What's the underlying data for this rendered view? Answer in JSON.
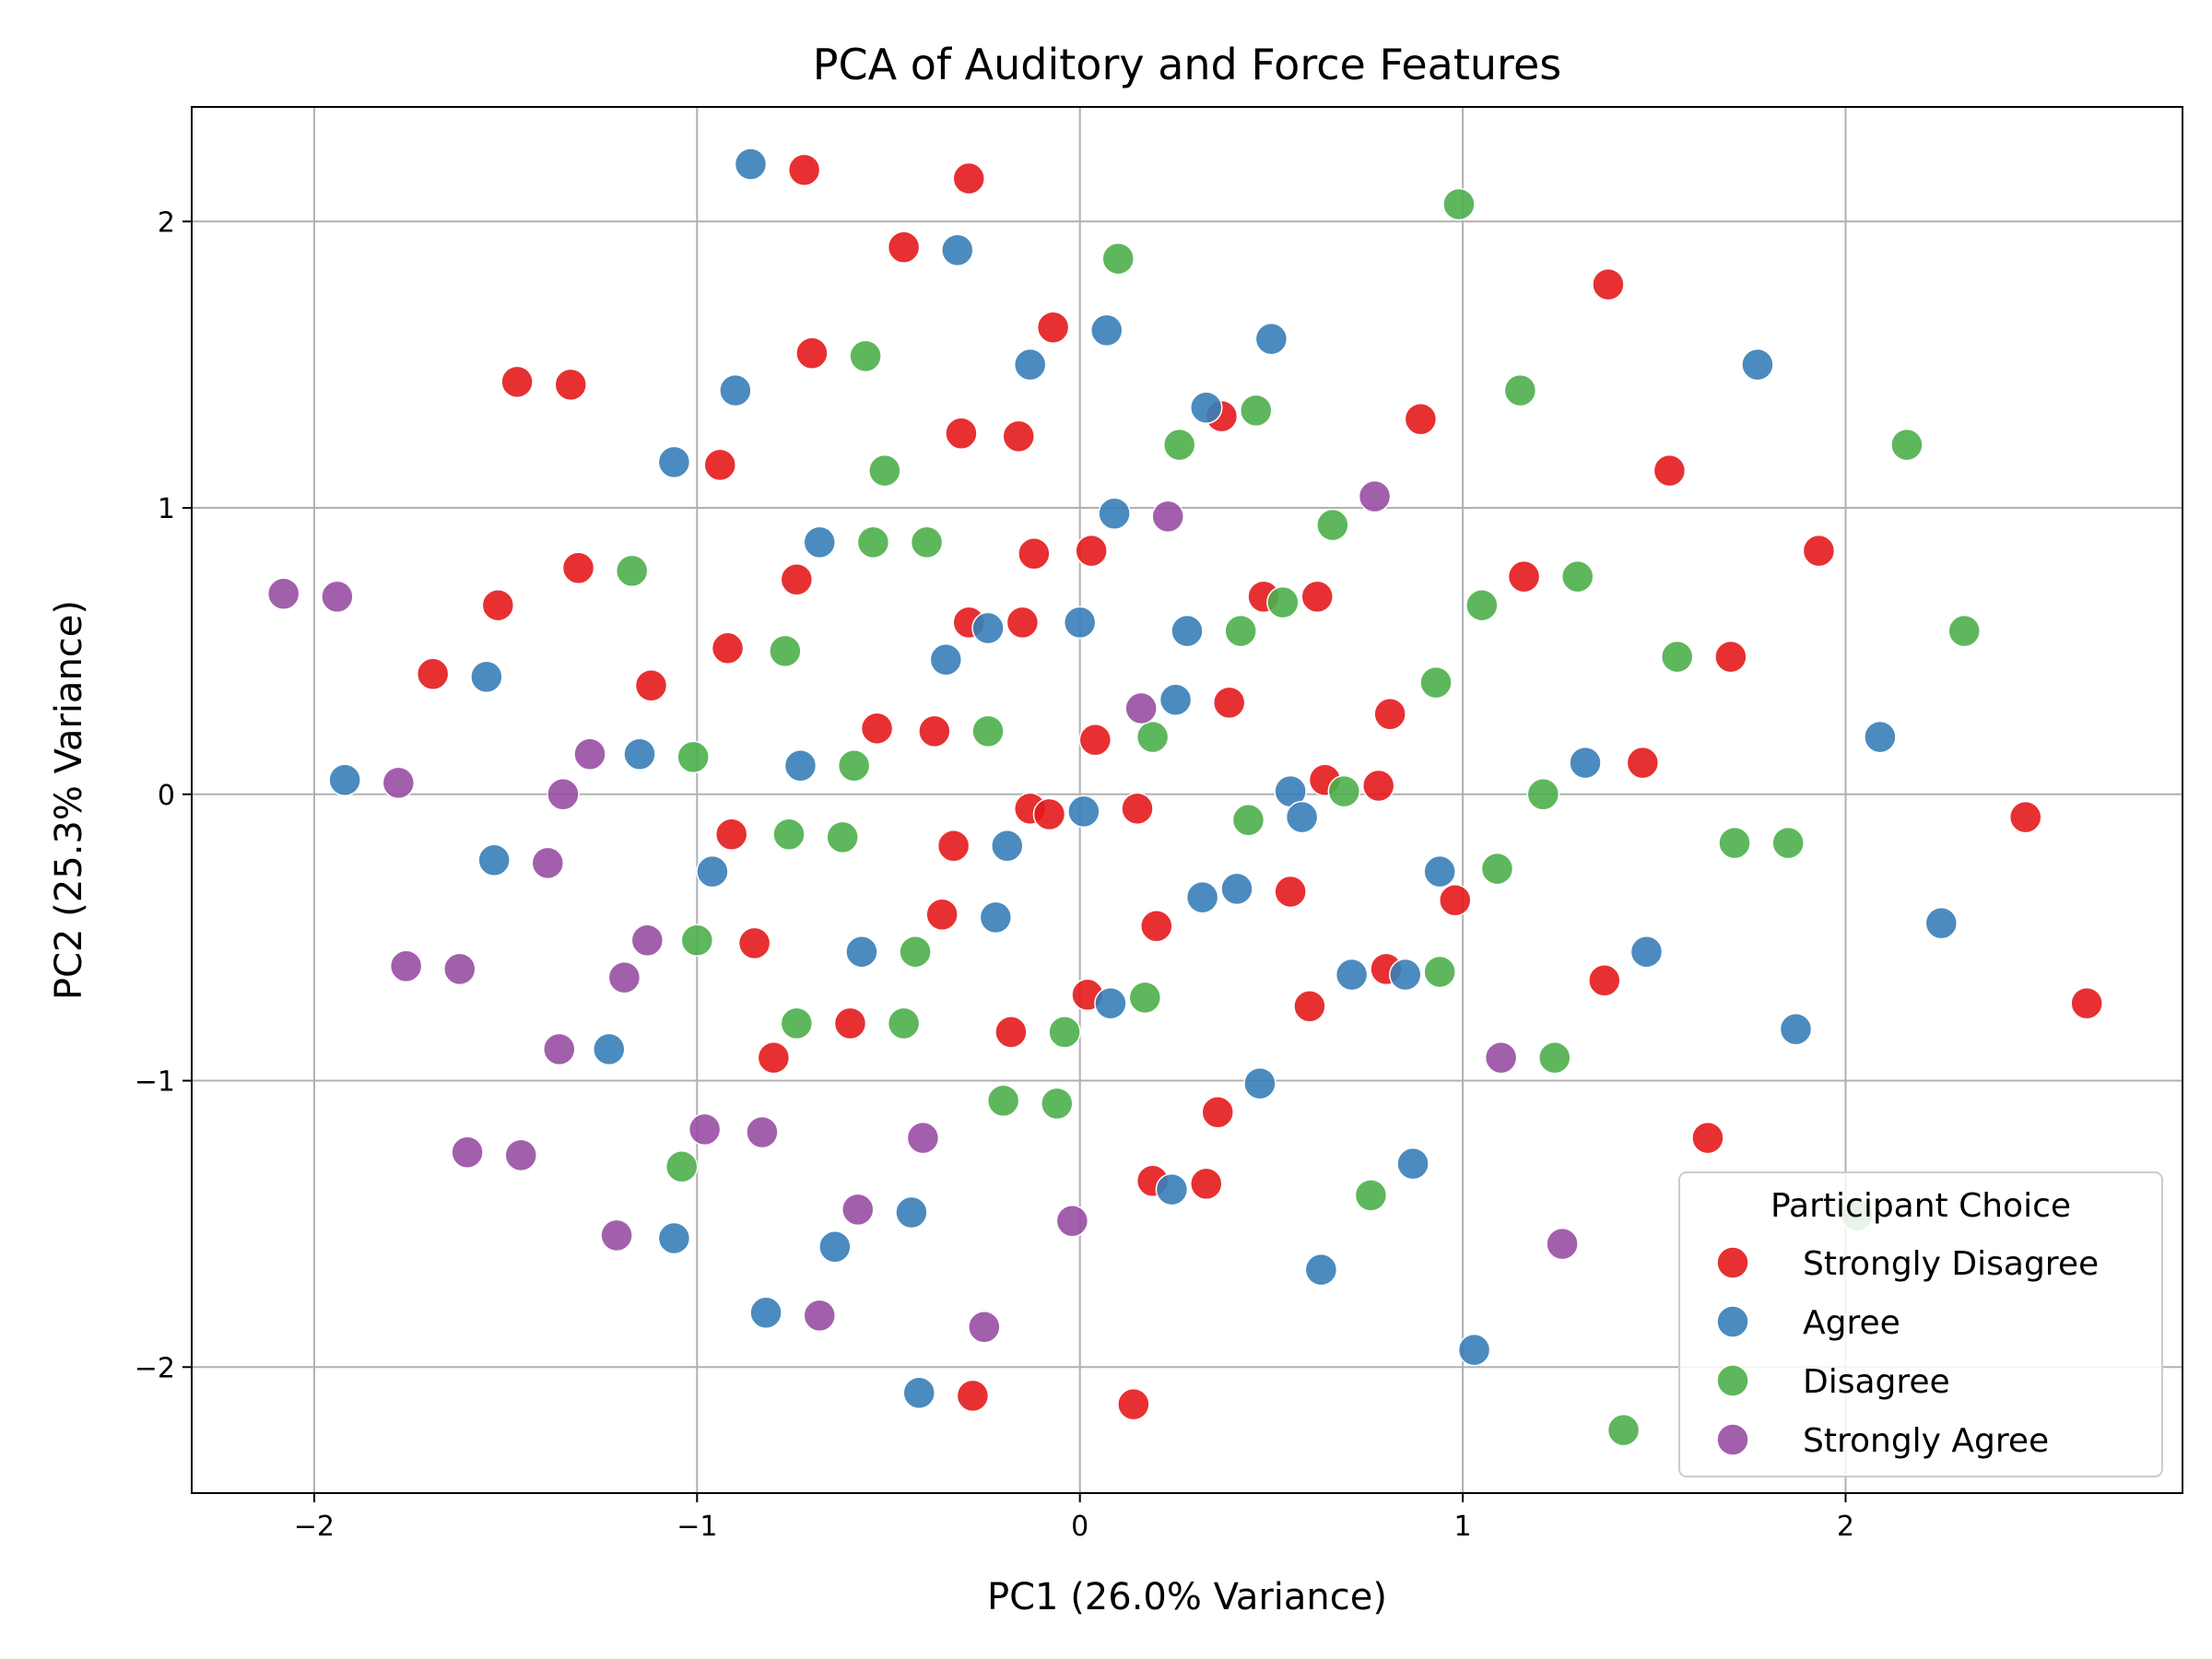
{
  "chart_data": {
    "type": "scatter",
    "title": "PCA of Auditory and Force Features",
    "xlabel": "PC1 (26.0% Variance)",
    "ylabel": "PC2 (25.3% Variance)",
    "xlim": [
      -2.32,
      2.88
    ],
    "ylim": [
      -2.44,
      2.4
    ],
    "xticks": [
      -2,
      -1,
      0,
      1,
      2
    ],
    "yticks": [
      -2,
      -1,
      0,
      1,
      2
    ],
    "xtick_labels": [
      "−2",
      "−1",
      "0",
      "1",
      "2"
    ],
    "ytick_labels": [
      "−2",
      "−1",
      "0",
      "1",
      "2"
    ],
    "grid": true,
    "legend": {
      "title": "Participant Choice",
      "position": "bottom-right"
    },
    "series": [
      {
        "name": "Strongly Disagree",
        "color": "#e41a1c",
        "points": [
          [
            -0.72,
            2.18
          ],
          [
            -0.29,
            2.15
          ],
          [
            -0.46,
            1.91
          ],
          [
            1.38,
            1.78
          ],
          [
            -0.7,
            1.54
          ],
          [
            -0.07,
            1.63
          ],
          [
            -1.47,
            1.44
          ],
          [
            -1.33,
            1.43
          ],
          [
            -0.31,
            1.26
          ],
          [
            -0.16,
            1.25
          ],
          [
            0.37,
            1.32
          ],
          [
            0.89,
            1.31
          ],
          [
            -0.94,
            1.15
          ],
          [
            1.54,
            1.13
          ],
          [
            1.93,
            0.85
          ],
          [
            -0.12,
            0.84
          ],
          [
            0.03,
            0.85
          ],
          [
            -1.31,
            0.79
          ],
          [
            -0.74,
            0.75
          ],
          [
            1.16,
            0.76
          ],
          [
            -1.52,
            0.66
          ],
          [
            0.48,
            0.69
          ],
          [
            0.62,
            0.69
          ],
          [
            -0.29,
            0.6
          ],
          [
            -0.15,
            0.6
          ],
          [
            -1.69,
            0.42
          ],
          [
            -0.92,
            0.51
          ],
          [
            1.7,
            0.48
          ],
          [
            -1.12,
            0.38
          ],
          [
            0.39,
            0.32
          ],
          [
            0.81,
            0.28
          ],
          [
            -0.53,
            0.23
          ],
          [
            -0.38,
            0.22
          ],
          [
            0.04,
            0.19
          ],
          [
            1.47,
            0.11
          ],
          [
            0.64,
            0.05
          ],
          [
            0.78,
            0.03
          ],
          [
            -0.13,
            -0.05
          ],
          [
            -0.08,
            -0.07
          ],
          [
            0.15,
            -0.05
          ],
          [
            2.47,
            -0.08
          ],
          [
            -0.91,
            -0.14
          ],
          [
            -0.33,
            -0.18
          ],
          [
            0.55,
            -0.34
          ],
          [
            0.98,
            -0.37
          ],
          [
            -0.36,
            -0.42
          ],
          [
            -0.85,
            -0.52
          ],
          [
            0.2,
            -0.46
          ],
          [
            1.37,
            -0.65
          ],
          [
            0.8,
            -0.61
          ],
          [
            0.02,
            -0.7
          ],
          [
            0.6,
            -0.74
          ],
          [
            2.63,
            -0.73
          ],
          [
            -0.6,
            -0.8
          ],
          [
            -0.18,
            -0.83
          ],
          [
            -0.8,
            -0.92
          ],
          [
            0.36,
            -1.11
          ],
          [
            1.64,
            -1.2
          ],
          [
            0.19,
            -1.35
          ],
          [
            0.33,
            -1.36
          ],
          [
            -0.28,
            -2.1
          ],
          [
            0.14,
            -2.13
          ]
        ]
      },
      {
        "name": "Agree",
        "color": "#377eb8",
        "points": [
          [
            -0.86,
            2.2
          ],
          [
            -0.32,
            1.9
          ],
          [
            0.07,
            1.62
          ],
          [
            0.5,
            1.59
          ],
          [
            1.77,
            1.5
          ],
          [
            -0.13,
            1.5
          ],
          [
            -0.9,
            1.41
          ],
          [
            0.33,
            1.35
          ],
          [
            -1.06,
            1.16
          ],
          [
            0.09,
            0.98
          ],
          [
            -0.68,
            0.88
          ],
          [
            0.0,
            0.6
          ],
          [
            -0.24,
            0.58
          ],
          [
            0.28,
            0.57
          ],
          [
            -0.35,
            0.47
          ],
          [
            -1.55,
            0.41
          ],
          [
            0.25,
            0.33
          ],
          [
            2.09,
            0.2
          ],
          [
            -1.15,
            0.14
          ],
          [
            1.32,
            0.11
          ],
          [
            -0.73,
            0.1
          ],
          [
            -1.92,
            0.05
          ],
          [
            0.55,
            0.01
          ],
          [
            0.58,
            -0.08
          ],
          [
            0.01,
            -0.06
          ],
          [
            -0.19,
            -0.18
          ],
          [
            -1.53,
            -0.23
          ],
          [
            -0.96,
            -0.27
          ],
          [
            0.94,
            -0.27
          ],
          [
            0.41,
            -0.33
          ],
          [
            0.32,
            -0.36
          ],
          [
            -0.22,
            -0.43
          ],
          [
            2.25,
            -0.45
          ],
          [
            -0.57,
            -0.55
          ],
          [
            1.48,
            -0.55
          ],
          [
            0.71,
            -0.63
          ],
          [
            0.85,
            -0.63
          ],
          [
            0.08,
            -0.73
          ],
          [
            1.87,
            -0.82
          ],
          [
            -1.23,
            -0.89
          ],
          [
            0.47,
            -1.01
          ],
          [
            0.87,
            -1.29
          ],
          [
            0.24,
            -1.38
          ],
          [
            -0.44,
            -1.46
          ],
          [
            -1.06,
            -1.55
          ],
          [
            -0.64,
            -1.58
          ],
          [
            0.63,
            -1.66
          ],
          [
            -0.82,
            -1.81
          ],
          [
            1.03,
            -1.94
          ],
          [
            -0.42,
            -2.09
          ]
        ]
      },
      {
        "name": "Disagree",
        "color": "#4daf4a",
        "points": [
          [
            0.99,
            2.06
          ],
          [
            0.1,
            1.87
          ],
          [
            -0.56,
            1.53
          ],
          [
            1.15,
            1.41
          ],
          [
            0.46,
            1.34
          ],
          [
            0.26,
            1.22
          ],
          [
            2.16,
            1.22
          ],
          [
            -0.51,
            1.13
          ],
          [
            0.66,
            0.94
          ],
          [
            -0.54,
            0.88
          ],
          [
            -0.4,
            0.88
          ],
          [
            -1.17,
            0.78
          ],
          [
            1.3,
            0.76
          ],
          [
            0.53,
            0.67
          ],
          [
            1.05,
            0.66
          ],
          [
            0.42,
            0.57
          ],
          [
            2.31,
            0.57
          ],
          [
            -0.77,
            0.5
          ],
          [
            1.56,
            0.48
          ],
          [
            0.93,
            0.39
          ],
          [
            -0.24,
            0.22
          ],
          [
            0.19,
            0.2
          ],
          [
            -1.01,
            0.13
          ],
          [
            -0.59,
            0.1
          ],
          [
            0.69,
            0.01
          ],
          [
            1.21,
            0.0
          ],
          [
            0.44,
            -0.09
          ],
          [
            -0.76,
            -0.14
          ],
          [
            -0.62,
            -0.15
          ],
          [
            1.71,
            -0.17
          ],
          [
            1.85,
            -0.17
          ],
          [
            1.09,
            -0.26
          ],
          [
            -1.0,
            -0.51
          ],
          [
            -0.43,
            -0.55
          ],
          [
            0.94,
            -0.62
          ],
          [
            0.17,
            -0.71
          ],
          [
            -0.74,
            -0.8
          ],
          [
            -0.46,
            -0.8
          ],
          [
            -0.04,
            -0.83
          ],
          [
            1.24,
            -0.92
          ],
          [
            -0.2,
            -1.07
          ],
          [
            -0.06,
            -1.08
          ],
          [
            -1.04,
            -1.3
          ],
          [
            0.76,
            -1.4
          ],
          [
            2.03,
            -1.47
          ],
          [
            1.42,
            -2.22
          ]
        ]
      },
      {
        "name": "Strongly Agree",
        "color": "#984ea3",
        "points": [
          [
            -2.08,
            0.7
          ],
          [
            -1.94,
            0.69
          ],
          [
            0.77,
            1.04
          ],
          [
            0.23,
            0.97
          ],
          [
            0.16,
            0.3
          ],
          [
            -1.28,
            0.14
          ],
          [
            -1.78,
            0.04
          ],
          [
            -1.35,
            0.0
          ],
          [
            -1.39,
            -0.24
          ],
          [
            -1.13,
            -0.51
          ],
          [
            -1.76,
            -0.6
          ],
          [
            -1.62,
            -0.61
          ],
          [
            -1.19,
            -0.64
          ],
          [
            -1.36,
            -0.89
          ],
          [
            1.1,
            -0.92
          ],
          [
            -0.98,
            -1.17
          ],
          [
            -0.83,
            -1.18
          ],
          [
            -0.41,
            -1.2
          ],
          [
            -1.6,
            -1.25
          ],
          [
            -1.46,
            -1.26
          ],
          [
            -0.58,
            -1.45
          ],
          [
            -0.02,
            -1.49
          ],
          [
            -1.21,
            -1.54
          ],
          [
            1.26,
            -1.57
          ],
          [
            -0.68,
            -1.82
          ],
          [
            -0.25,
            -1.86
          ]
        ]
      }
    ]
  }
}
